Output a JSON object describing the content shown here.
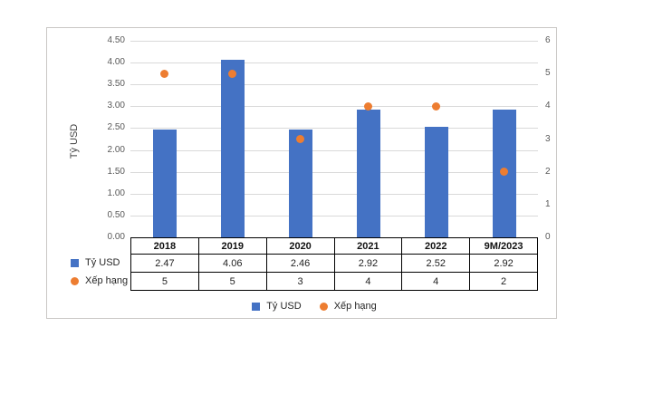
{
  "chart": {
    "container_border_color": "#c9c7c5",
    "background": "#ffffff"
  },
  "chart_data": {
    "type": "bar",
    "subtype": "combo-bar-scatter-two-axes",
    "categories": [
      "2018",
      "2019",
      "2020",
      "2021",
      "2022",
      "9M/2023"
    ],
    "series": [
      {
        "name": "Tỷ USD",
        "type": "bar",
        "axis": "left",
        "color": "#4472C4",
        "marker": "square",
        "values": [
          2.47,
          4.06,
          2.46,
          2.92,
          2.52,
          2.92
        ],
        "value_labels": [
          "2.47",
          "4.06",
          "2.46",
          "2.92",
          "2.52",
          "2.92"
        ]
      },
      {
        "name": "Xếp hạng",
        "type": "scatter",
        "axis": "right",
        "color": "#ED7D31",
        "marker": "circle",
        "values": [
          5,
          5,
          3,
          4,
          4,
          2
        ],
        "value_labels": [
          "5",
          "5",
          "3",
          "4",
          "4",
          "2"
        ]
      }
    ],
    "left_axis": {
      "title": "Tỷ USD",
      "min": 0,
      "max": 4.5,
      "step": 0.5,
      "tick_labels": [
        "4.50",
        "4.00",
        "3.50",
        "3.00",
        "2.50",
        "2.00",
        "1.50",
        "1.00",
        "0.50",
        "0.00"
      ]
    },
    "right_axis": {
      "min": 0,
      "max": 6,
      "step": 1,
      "tick_labels": [
        "6",
        "5",
        "4",
        "3",
        "2",
        "1",
        "0"
      ]
    },
    "grid": true,
    "gridline_color": "#d9d9d9",
    "tick_color": "#595959",
    "table_border_color": "#000000",
    "legend_position": "bottom",
    "legend": [
      "Tỷ USD",
      "Xếp hạng"
    ],
    "data_table": true
  }
}
